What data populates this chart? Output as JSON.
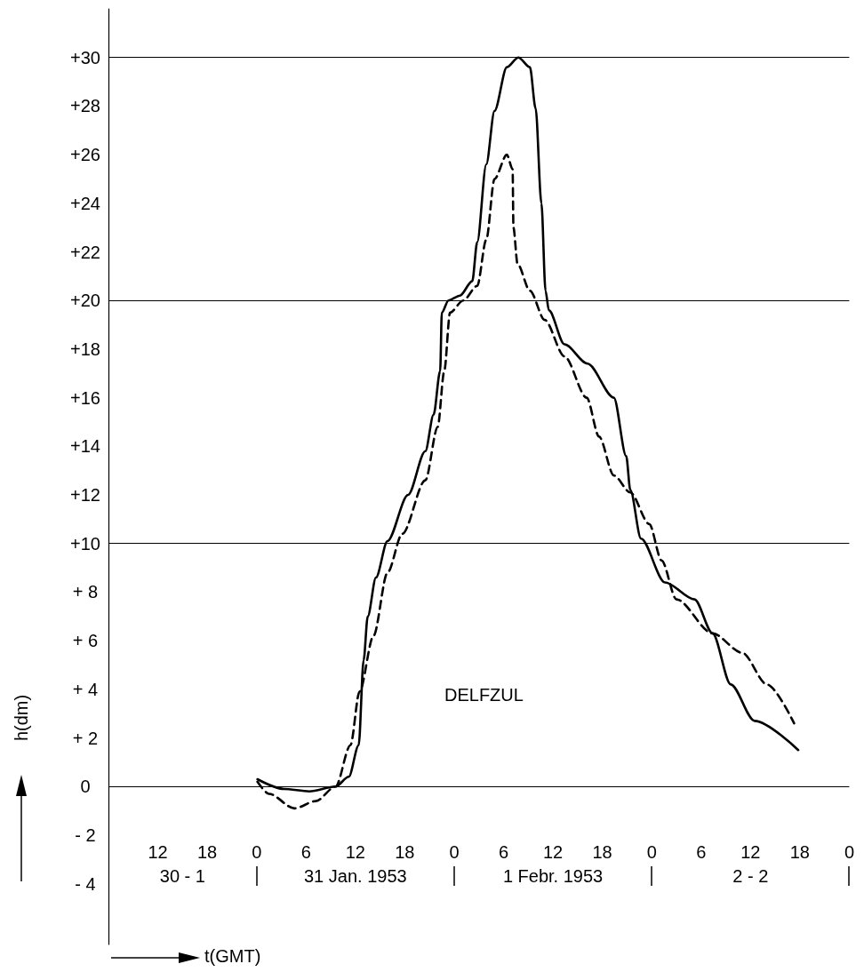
{
  "chart_data": {
    "type": "line",
    "xlabel": "t(GMT)",
    "ylabel": "h(dm)",
    "annotations": [
      "DELFZUL",
      "30 - 1",
      "31 Jan. 1953",
      "1 Febr. 1953",
      "2 - 2"
    ],
    "xlim": [
      "1953-01-30T06:00",
      "1953-02-03T00:00"
    ],
    "ylim": [
      -6.5,
      32
    ],
    "xticks": [
      {
        "value": "1953-01-30T12:00",
        "label": "12"
      },
      {
        "value": "1953-01-30T18:00",
        "label": "18"
      },
      {
        "value": "1953-01-31T00:00",
        "label": "0"
      },
      {
        "value": "1953-01-31T06:00",
        "label": "6"
      },
      {
        "value": "1953-01-31T12:00",
        "label": "12"
      },
      {
        "value": "1953-01-31T18:00",
        "label": "18"
      },
      {
        "value": "1953-02-01T00:00",
        "label": "0"
      },
      {
        "value": "1953-02-01T06:00",
        "label": "6"
      },
      {
        "value": "1953-02-01T12:00",
        "label": "12"
      },
      {
        "value": "1953-02-01T18:00",
        "label": "18"
      },
      {
        "value": "1953-02-02T00:00",
        "label": "0"
      },
      {
        "value": "1953-02-02T06:00",
        "label": "6"
      },
      {
        "value": "1953-02-02T12:00",
        "label": "12"
      },
      {
        "value": "1953-02-02T18:00",
        "label": "18"
      },
      {
        "value": "1953-02-03T00:00",
        "label": "0"
      }
    ],
    "yticks": [
      {
        "value": -4,
        "label": "- 4"
      },
      {
        "value": -2,
        "label": "- 2"
      },
      0,
      {
        "value": 2,
        "label": "+ 2"
      },
      {
        "value": 4,
        "label": "+ 4"
      },
      {
        "value": 6,
        "label": "+ 6"
      },
      {
        "value": 8,
        "label": "+ 8"
      },
      {
        "value": 10,
        "label": "+10"
      },
      {
        "value": 12,
        "label": "+12"
      },
      {
        "value": 14,
        "label": "+14"
      },
      {
        "value": 16,
        "label": "+16"
      },
      {
        "value": 18,
        "label": "+18"
      },
      {
        "value": 20,
        "label": "+20"
      },
      {
        "value": 22,
        "label": "+22"
      },
      {
        "value": 24,
        "label": "+24"
      },
      {
        "value": 26,
        "label": "+26"
      },
      {
        "value": 28,
        "label": "+28"
      },
      {
        "value": 30,
        "label": "+30"
      }
    ],
    "ref_lines": [
      {
        "axis": "y",
        "value": 0,
        "color": "#000000"
      },
      {
        "axis": "y",
        "value": 10,
        "color": "#000000"
      },
      {
        "axis": "y",
        "value": 20,
        "color": "#000000"
      },
      {
        "axis": "y",
        "value": 30,
        "color": "#000000"
      }
    ],
    "grid": false,
    "marker": "none",
    "series": [
      {
        "color": "#000000",
        "line_style": "solid",
        "x": [
          "1953-01-31T00:06",
          "1953-01-31T03:18",
          "1953-01-31T06:24",
          "1953-01-31T09:36",
          "1953-01-31T11:12",
          "1953-01-31T12:24",
          "1953-01-31T13:00",
          "1953-01-31T13:30",
          "1953-01-31T14:30",
          "1953-01-31T15:54",
          "1953-01-31T18:24",
          "1953-01-31T20:30",
          "1953-01-31T21:30",
          "1953-01-31T22:18",
          "1953-01-31T22:30",
          "1953-01-31T23:18",
          "1953-02-01T00:42",
          "1953-02-01T02:12",
          "1953-02-01T02:48",
          "1953-02-01T03:54",
          "1953-02-01T04:54",
          "1953-02-01T06:24",
          "1953-02-01T07:48",
          "1953-02-01T09:12",
          "1953-02-01T09:54",
          "1953-02-01T10:36",
          "1953-02-01T11:06",
          "1953-02-01T11:30",
          "1953-02-01T13:24",
          "1953-02-01T16:12",
          "1953-02-01T19:24",
          "1953-02-01T20:54",
          "1953-02-01T21:24",
          "1953-02-01T22:42",
          "1953-02-02T01:36",
          "1953-02-02T05:12",
          "1953-02-02T07:24",
          "1953-02-02T09:36",
          "1953-02-02T12:30",
          "1953-02-02T17:48"
        ],
        "values": [
          0.3,
          -0.1,
          -0.2,
          0,
          0.4,
          1.7,
          5.2,
          7.0,
          8.6,
          10.1,
          12.0,
          13.8,
          15.3,
          17.1,
          19.5,
          20.0,
          20.2,
          20.8,
          22.4,
          25.6,
          27.8,
          29.6,
          30.0,
          29.6,
          27.9,
          24.0,
          20.4,
          19.6,
          18.2,
          17.4,
          16.0,
          13.6,
          12.2,
          10.2,
          8.4,
          7.7,
          6.3,
          4.2,
          2.7,
          1.5
        ]
      },
      {
        "color": "#000000",
        "line_style": "dashed",
        "x": [
          "1953-01-31T00:06",
          "1953-01-31T01:30",
          "1953-01-31T04:36",
          "1953-01-31T07:12",
          "1953-01-31T09:36",
          "1953-01-31T11:24",
          "1953-01-31T12:30",
          "1953-01-31T14:12",
          "1953-01-31T15:54",
          "1953-01-31T17:42",
          "1953-01-31T20:30",
          "1953-01-31T22:00",
          "1953-01-31T22:48",
          "1953-01-31T23:30",
          "1953-02-01T01:06",
          "1953-02-01T02:48",
          "1953-02-01T03:54",
          "1953-02-01T04:54",
          "1953-02-01T06:24",
          "1953-02-01T07:06",
          "1953-02-01T07:12",
          "1953-02-01T07:42",
          "1953-02-01T09:12",
          "1953-02-01T11:00",
          "1953-02-01T13:24",
          "1953-02-01T16:06",
          "1953-02-01T17:36",
          "1953-02-01T19:24",
          "1953-02-01T21:24",
          "1953-02-01T23:42",
          "1953-02-02T01:12",
          "1953-02-02T03:00",
          "1953-02-02T07:24",
          "1953-02-02T11:00",
          "1953-02-02T14:00",
          "1953-02-02T17:18"
        ],
        "values": [
          0.2,
          -0.3,
          -0.9,
          -0.6,
          0,
          1.7,
          3.9,
          6.2,
          8.8,
          10.4,
          12.6,
          14.8,
          17.1,
          19.5,
          20.0,
          20.6,
          22.5,
          25.0,
          26.0,
          25.4,
          23.0,
          21.5,
          20.4,
          19.2,
          17.7,
          16.0,
          14.4,
          12.8,
          12.1,
          10.8,
          9.3,
          7.7,
          6.3,
          5.5,
          4.2,
          2.6
        ]
      }
    ]
  }
}
